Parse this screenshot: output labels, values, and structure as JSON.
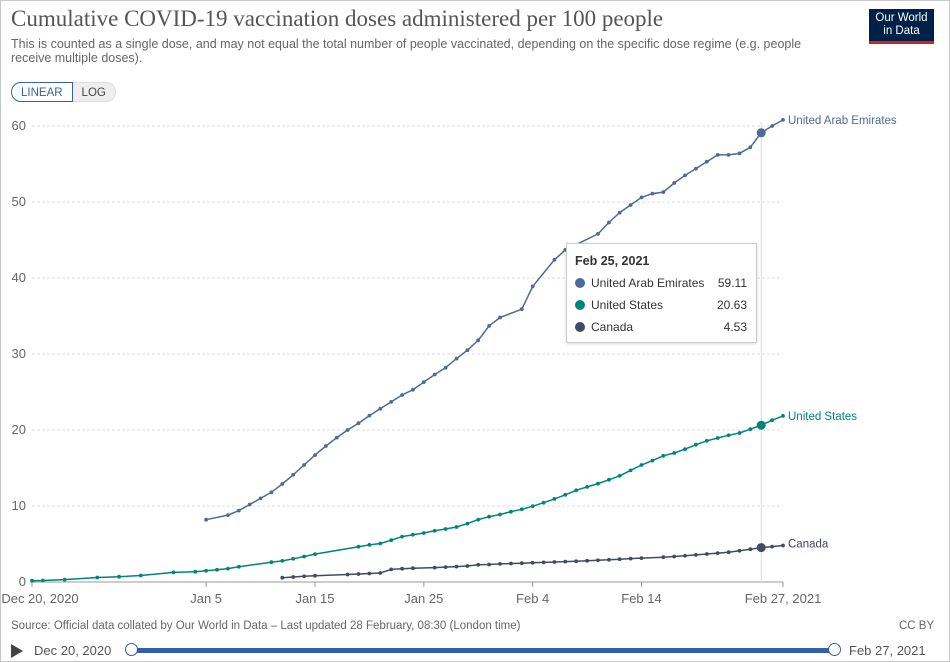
{
  "header": {
    "title": "Cumulative COVID-19 vaccination doses administered per 100 people",
    "subtitle": "This is counted as a single dose, and may not equal the total number of people vaccinated, depending on the specific dose regime (e.g. people receive multiple doses).",
    "logo_line1": "Our World",
    "logo_line2": "in Data"
  },
  "controls": {
    "linear_label": "LINEAR",
    "log_label": "LOG"
  },
  "tooltip": {
    "date": "Feb 25, 2021",
    "rows": [
      {
        "name": "United Arab Emirates",
        "value": "59.11",
        "color": "#4c6a9c"
      },
      {
        "name": "United States",
        "value": "20.63",
        "color": "#00847e"
      },
      {
        "name": "Canada",
        "value": "4.53",
        "color": "#3f4c63"
      }
    ]
  },
  "footer": {
    "source": "Source: Official data collated by Our World in Data – Last updated 28 February, 08:30 (London time)",
    "license": "CC BY"
  },
  "timeline": {
    "start_label": "Dec 20, 2020",
    "end_label": "Feb 27, 2021"
  },
  "chart_data": {
    "type": "line",
    "title": "Cumulative COVID-19 vaccination doses administered per 100 people",
    "ylim": [
      0,
      60
    ],
    "yticks": [
      0,
      10,
      20,
      30,
      40,
      50,
      60
    ],
    "xlim": [
      "2020-12-20",
      "2021-02-27"
    ],
    "xticks": [
      {
        "date": "2020-12-20",
        "label": "Dec 20, 2020"
      },
      {
        "date": "2021-01-05",
        "label": "Jan 5"
      },
      {
        "date": "2021-01-15",
        "label": "Jan 15"
      },
      {
        "date": "2021-01-25",
        "label": "Jan 25"
      },
      {
        "date": "2021-02-04",
        "label": "Feb 4"
      },
      {
        "date": "2021-02-14",
        "label": "Feb 14"
      },
      {
        "date": "2021-02-27",
        "label": "Feb 27, 2021"
      }
    ],
    "grid": true,
    "hover_date": "2021-02-25",
    "series": [
      {
        "name": "United Arab Emirates",
        "color": "#4c6a9c",
        "points": [
          [
            "2021-01-05",
            8.2
          ],
          [
            "2021-01-07",
            8.8
          ],
          [
            "2021-01-08",
            9.4
          ],
          [
            "2021-01-09",
            10.2
          ],
          [
            "2021-01-10",
            11.0
          ],
          [
            "2021-01-11",
            11.8
          ],
          [
            "2021-01-12",
            12.9
          ],
          [
            "2021-01-13",
            14.1
          ],
          [
            "2021-01-14",
            15.4
          ],
          [
            "2021-01-15",
            16.7
          ],
          [
            "2021-01-16",
            17.9
          ],
          [
            "2021-01-17",
            19.0
          ],
          [
            "2021-01-18",
            20.0
          ],
          [
            "2021-01-19",
            20.9
          ],
          [
            "2021-01-20",
            21.9
          ],
          [
            "2021-01-21",
            22.8
          ],
          [
            "2021-01-22",
            23.7
          ],
          [
            "2021-01-23",
            24.6
          ],
          [
            "2021-01-24",
            25.3
          ],
          [
            "2021-01-25",
            26.3
          ],
          [
            "2021-01-26",
            27.3
          ],
          [
            "2021-01-27",
            28.2
          ],
          [
            "2021-01-28",
            29.4
          ],
          [
            "2021-01-29",
            30.5
          ],
          [
            "2021-01-30",
            31.8
          ],
          [
            "2021-01-31",
            33.7
          ],
          [
            "2021-02-01",
            34.8
          ],
          [
            "2021-02-03",
            35.9
          ],
          [
            "2021-02-04",
            38.9
          ],
          [
            "2021-02-06",
            42.4
          ],
          [
            "2021-02-07",
            43.7
          ],
          [
            "2021-02-10",
            45.8
          ],
          [
            "2021-02-11",
            47.3
          ],
          [
            "2021-02-12",
            48.6
          ],
          [
            "2021-02-13",
            49.6
          ],
          [
            "2021-02-14",
            50.6
          ],
          [
            "2021-02-15",
            51.1
          ],
          [
            "2021-02-16",
            51.3
          ],
          [
            "2021-02-17",
            52.5
          ],
          [
            "2021-02-18",
            53.5
          ],
          [
            "2021-02-19",
            54.4
          ],
          [
            "2021-02-20",
            55.3
          ],
          [
            "2021-02-21",
            56.2
          ],
          [
            "2021-02-22",
            56.2
          ],
          [
            "2021-02-23",
            56.4
          ],
          [
            "2021-02-24",
            57.2
          ],
          [
            "2021-02-25",
            59.11
          ],
          [
            "2021-02-26",
            60.0
          ],
          [
            "2021-02-27",
            60.8
          ]
        ]
      },
      {
        "name": "United States",
        "color": "#00847e",
        "points": [
          [
            "2020-12-20",
            0.17
          ],
          [
            "2020-12-21",
            0.2
          ],
          [
            "2020-12-23",
            0.31
          ],
          [
            "2020-12-26",
            0.59
          ],
          [
            "2020-12-28",
            0.7
          ],
          [
            "2020-12-30",
            0.85
          ],
          [
            "2021-01-02",
            1.26
          ],
          [
            "2021-01-04",
            1.35
          ],
          [
            "2021-01-05",
            1.47
          ],
          [
            "2021-01-06",
            1.6
          ],
          [
            "2021-01-07",
            1.76
          ],
          [
            "2021-01-08",
            2.0
          ],
          [
            "2021-01-11",
            2.61
          ],
          [
            "2021-01-12",
            2.78
          ],
          [
            "2021-01-13",
            3.05
          ],
          [
            "2021-01-14",
            3.35
          ],
          [
            "2021-01-15",
            3.67
          ],
          [
            "2021-01-19",
            4.64
          ],
          [
            "2021-01-20",
            4.88
          ],
          [
            "2021-01-21",
            5.07
          ],
          [
            "2021-01-22",
            5.5
          ],
          [
            "2021-01-23",
            5.98
          ],
          [
            "2021-01-24",
            6.22
          ],
          [
            "2021-01-25",
            6.45
          ],
          [
            "2021-01-26",
            6.74
          ],
          [
            "2021-01-27",
            6.98
          ],
          [
            "2021-01-28",
            7.24
          ],
          [
            "2021-01-29",
            7.69
          ],
          [
            "2021-01-30",
            8.21
          ],
          [
            "2021-01-31",
            8.59
          ],
          [
            "2021-02-01",
            8.88
          ],
          [
            "2021-02-02",
            9.25
          ],
          [
            "2021-02-03",
            9.57
          ],
          [
            "2021-02-04",
            9.98
          ],
          [
            "2021-02-05",
            10.43
          ],
          [
            "2021-02-06",
            10.93
          ],
          [
            "2021-02-07",
            11.47
          ],
          [
            "2021-02-08",
            12.06
          ],
          [
            "2021-02-09",
            12.51
          ],
          [
            "2021-02-10",
            12.95
          ],
          [
            "2021-02-11",
            13.45
          ],
          [
            "2021-02-12",
            13.98
          ],
          [
            "2021-02-13",
            14.69
          ],
          [
            "2021-02-14",
            15.4
          ],
          [
            "2021-02-15",
            15.97
          ],
          [
            "2021-02-16",
            16.6
          ],
          [
            "2021-02-17",
            16.97
          ],
          [
            "2021-02-18",
            17.47
          ],
          [
            "2021-02-19",
            18.06
          ],
          [
            "2021-02-20",
            18.58
          ],
          [
            "2021-02-21",
            18.95
          ],
          [
            "2021-02-22",
            19.3
          ],
          [
            "2021-02-23",
            19.6
          ],
          [
            "2021-02-24",
            20.11
          ],
          [
            "2021-02-25",
            20.63
          ],
          [
            "2021-02-26",
            21.29
          ],
          [
            "2021-02-27",
            21.85
          ]
        ]
      },
      {
        "name": "Canada",
        "color": "#3f4c63",
        "points": [
          [
            "2021-01-12",
            0.56
          ],
          [
            "2021-01-13",
            0.66
          ],
          [
            "2021-01-14",
            0.75
          ],
          [
            "2021-01-15",
            0.83
          ],
          [
            "2021-01-18",
            0.99
          ],
          [
            "2021-01-19",
            1.05
          ],
          [
            "2021-01-20",
            1.12
          ],
          [
            "2021-01-21",
            1.18
          ],
          [
            "2021-01-22",
            1.66
          ],
          [
            "2021-01-23",
            1.75
          ],
          [
            "2021-01-24",
            1.82
          ],
          [
            "2021-01-26",
            1.9
          ],
          [
            "2021-01-27",
            1.96
          ],
          [
            "2021-01-28",
            2.02
          ],
          [
            "2021-01-29",
            2.1
          ],
          [
            "2021-01-30",
            2.26
          ],
          [
            "2021-01-31",
            2.3
          ],
          [
            "2021-02-01",
            2.38
          ],
          [
            "2021-02-02",
            2.44
          ],
          [
            "2021-02-03",
            2.48
          ],
          [
            "2021-02-04",
            2.53
          ],
          [
            "2021-02-05",
            2.58
          ],
          [
            "2021-02-06",
            2.63
          ],
          [
            "2021-02-07",
            2.68
          ],
          [
            "2021-02-08",
            2.73
          ],
          [
            "2021-02-09",
            2.79
          ],
          [
            "2021-02-10",
            2.85
          ],
          [
            "2021-02-11",
            2.92
          ],
          [
            "2021-02-12",
            3.0
          ],
          [
            "2021-02-13",
            3.08
          ],
          [
            "2021-02-14",
            3.15
          ],
          [
            "2021-02-16",
            3.26
          ],
          [
            "2021-02-17",
            3.35
          ],
          [
            "2021-02-18",
            3.45
          ],
          [
            "2021-02-19",
            3.56
          ],
          [
            "2021-02-20",
            3.68
          ],
          [
            "2021-02-21",
            3.8
          ],
          [
            "2021-02-22",
            3.92
          ],
          [
            "2021-02-23",
            4.1
          ],
          [
            "2021-02-24",
            4.32
          ],
          [
            "2021-02-25",
            4.53
          ],
          [
            "2021-02-26",
            4.66
          ],
          [
            "2021-02-27",
            4.8
          ]
        ]
      }
    ]
  }
}
